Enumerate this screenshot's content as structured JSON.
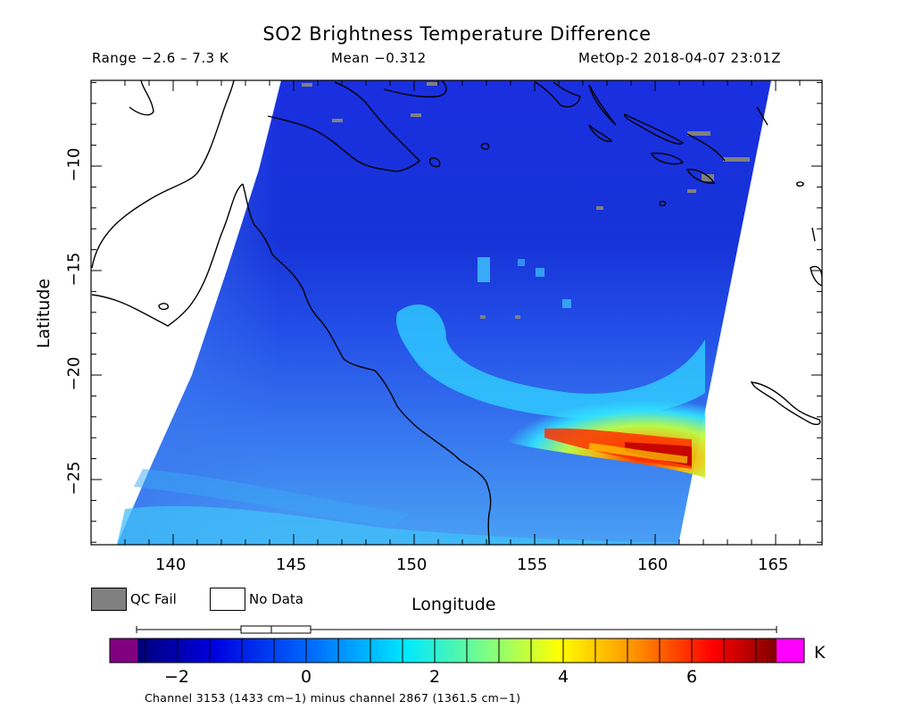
{
  "title": "SO2 Brightness Temperature Difference",
  "range_text": "Range −2.6 – 7.3 K",
  "mean_text": "Mean −0.312",
  "source_text": "MetOp-2 2018-04-07 23:01Z",
  "axes": {
    "x_label": "Longitude",
    "y_label": "Latitude",
    "x_ticks": [
      "140",
      "145",
      "150",
      "155",
      "160",
      "165"
    ],
    "y_ticks": [
      "−10",
      "−15",
      "−20",
      "−25"
    ]
  },
  "legend": {
    "qc_fail_label": "QC Fail",
    "no_data_label": "No Data",
    "qc_fail_color": "#808080",
    "no_data_color": "#ffffff"
  },
  "colorbar": {
    "ticks": [
      "−2",
      "0",
      "2",
      "4",
      "6"
    ],
    "unit": "K",
    "under_color": "#800080",
    "over_color": "#ff00ff",
    "gradient": [
      "#000080",
      "#0000ff",
      "#0080ff",
      "#00ffff",
      "#80ff80",
      "#ffff00",
      "#ff8000",
      "#ff0000",
      "#800000"
    ]
  },
  "footer": "Channel 3153 (1433 cm−1) minus channel 2867 (1361.5 cm−1)"
}
